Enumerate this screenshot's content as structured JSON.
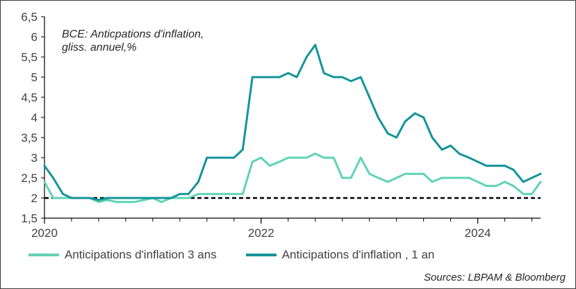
{
  "chart_data": {
    "type": "line",
    "title_lines": [
      "BCE: Anticpations d'inflation,",
      "gliss. annuel,%"
    ],
    "xlim": [
      2020.0,
      2024.58
    ],
    "ylim": [
      1.5,
      6.5
    ],
    "y_ticks": [
      "1,5",
      "2",
      "2,5",
      "3",
      "3,5",
      "4",
      "4,5",
      "5",
      "5,5",
      "6",
      "6,5"
    ],
    "x_tick_positions": [
      2020,
      2022,
      2024
    ],
    "x_tick_labels": [
      "2020",
      "2022",
      "2024"
    ],
    "reference_line": {
      "y": 2,
      "style": "dashed",
      "color": "#000000"
    },
    "series": [
      {
        "name": "Anticipations d'inflation 3 ans",
        "color": "#5fd3b3",
        "x": [
          2020.0,
          2020.08,
          2020.17,
          2020.25,
          2020.33,
          2020.42,
          2020.5,
          2020.58,
          2020.67,
          2020.75,
          2020.83,
          2020.92,
          2021.0,
          2021.08,
          2021.17,
          2021.25,
          2021.33,
          2021.42,
          2021.5,
          2021.58,
          2021.67,
          2021.75,
          2021.83,
          2021.92,
          2022.0,
          2022.08,
          2022.17,
          2022.25,
          2022.33,
          2022.42,
          2022.5,
          2022.58,
          2022.67,
          2022.75,
          2022.83,
          2022.92,
          2023.0,
          2023.08,
          2023.17,
          2023.25,
          2023.33,
          2023.42,
          2023.5,
          2023.58,
          2023.67,
          2023.75,
          2023.83,
          2023.92,
          2024.0,
          2024.08,
          2024.17,
          2024.25,
          2024.33,
          2024.42,
          2024.5,
          2024.58
        ],
        "values": [
          2.4,
          2.0,
          2.0,
          2.0,
          2.0,
          2.0,
          1.9,
          1.95,
          1.9,
          1.9,
          1.9,
          1.95,
          2.0,
          1.9,
          2.0,
          2.0,
          2.0,
          2.1,
          2.1,
          2.1,
          2.1,
          2.1,
          2.1,
          2.9,
          3.0,
          2.8,
          2.9,
          3.0,
          3.0,
          3.0,
          3.1,
          3.0,
          3.0,
          2.5,
          2.5,
          3.0,
          2.6,
          2.5,
          2.4,
          2.5,
          2.6,
          2.6,
          2.6,
          2.4,
          2.5,
          2.5,
          2.5,
          2.5,
          2.4,
          2.3,
          2.3,
          2.4,
          2.3,
          2.1,
          2.1,
          2.4
        ]
      },
      {
        "name": "Anticipations d'inflation , 1 an",
        "color": "#13939a",
        "x": [
          2020.0,
          2020.08,
          2020.17,
          2020.25,
          2020.33,
          2020.42,
          2020.5,
          2020.58,
          2020.67,
          2020.75,
          2020.83,
          2020.92,
          2021.0,
          2021.08,
          2021.17,
          2021.25,
          2021.33,
          2021.42,
          2021.5,
          2021.58,
          2021.67,
          2021.75,
          2021.83,
          2021.92,
          2022.0,
          2022.08,
          2022.17,
          2022.25,
          2022.33,
          2022.42,
          2022.5,
          2022.58,
          2022.67,
          2022.75,
          2022.83,
          2022.92,
          2023.0,
          2023.08,
          2023.17,
          2023.25,
          2023.33,
          2023.42,
          2023.5,
          2023.58,
          2023.67,
          2023.75,
          2023.83,
          2023.92,
          2024.0,
          2024.08,
          2024.17,
          2024.25,
          2024.33,
          2024.42,
          2024.5,
          2024.58
        ],
        "values": [
          2.8,
          2.5,
          2.1,
          2.0,
          2.0,
          2.0,
          1.95,
          2.0,
          2.0,
          2.0,
          2.0,
          2.0,
          2.0,
          2.0,
          2.0,
          2.1,
          2.1,
          2.4,
          3.0,
          3.0,
          3.0,
          3.0,
          3.2,
          5.0,
          5.0,
          5.0,
          5.0,
          5.1,
          5.0,
          5.5,
          5.8,
          5.1,
          5.0,
          5.0,
          4.9,
          5.0,
          4.5,
          4.0,
          3.6,
          3.5,
          3.9,
          4.1,
          4.0,
          3.5,
          3.2,
          3.3,
          3.1,
          3.0,
          2.9,
          2.8,
          2.8,
          2.8,
          2.7,
          2.4,
          2.5,
          2.6
        ]
      }
    ],
    "grid": false,
    "legend_position": "bottom",
    "source": "Sources: LBPAM & Bloomberg"
  }
}
